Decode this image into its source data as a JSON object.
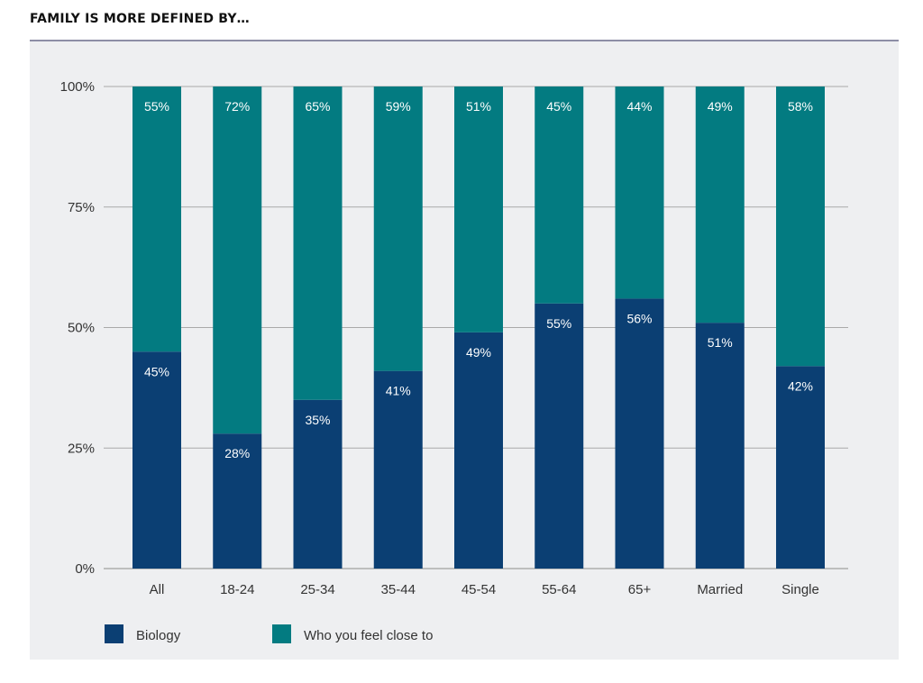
{
  "title": "FAMILY IS MORE DEFINED BY…",
  "chart_data": {
    "type": "bar",
    "stacked": true,
    "title": "FAMILY IS MORE DEFINED BY…",
    "categories": [
      "All",
      "18-24",
      "25-34",
      "35-44",
      "45-54",
      "55-64",
      "65+",
      "Married",
      "Single"
    ],
    "series": [
      {
        "name": "Biology",
        "values": [
          45,
          28,
          35,
          41,
          49,
          55,
          56,
          51,
          42
        ],
        "color": "#0b3f73"
      },
      {
        "name": "Who you feel close to",
        "values": [
          55,
          72,
          65,
          59,
          51,
          45,
          44,
          49,
          58
        ],
        "color": "#037b81"
      }
    ],
    "yticks": [
      "0%",
      "25%",
      "50%",
      "75%",
      "100%"
    ],
    "ylim": [
      0,
      100
    ],
    "grid": true,
    "legend": "bottom-left",
    "value_suffix": "%"
  }
}
